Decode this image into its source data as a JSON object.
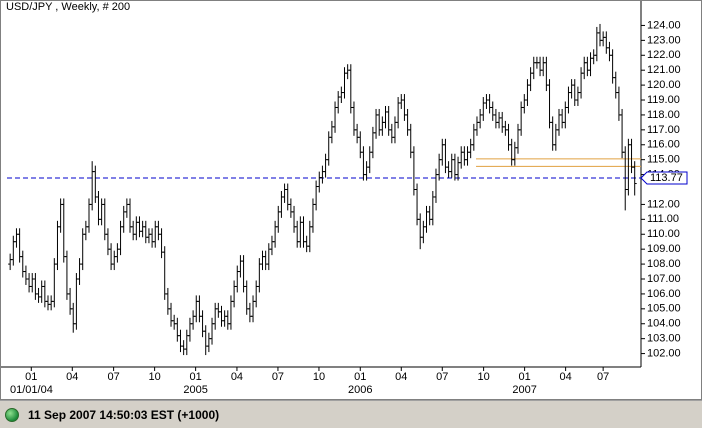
{
  "chart_data": {
    "type": "ohlc",
    "title": "USD/JPY , Weekly, # 200",
    "color": "#000000",
    "open": [
      108.0,
      108.3,
      109.5,
      110,
      108.5,
      107.5,
      107,
      106.5,
      107,
      106,
      105.8,
      106.5,
      105.5,
      105.3,
      105.5,
      108,
      110.5,
      112,
      108.5,
      106,
      105,
      104,
      107,
      108,
      110,
      110.5,
      112,
      114.2,
      112.5,
      111,
      112,
      110,
      109,
      108,
      108.5,
      109,
      110.5,
      111.5,
      112,
      110.5,
      110,
      110.8,
      110.2,
      110.5,
      109.8,
      110,
      109.5,
      110.5,
      110,
      108.8,
      106,
      105,
      104.2,
      104,
      103.2,
      102.5,
      102.3,
      103.2,
      104,
      104.5,
      105.5,
      104.5,
      103.5,
      102.5,
      103,
      104,
      105,
      104.8,
      104.2,
      104.5,
      104,
      105.5,
      106.5,
      107.5,
      108.2,
      106.5,
      105,
      104.5,
      105.5,
      106.5,
      108,
      108.5,
      108,
      109,
      109.5,
      110.5,
      111.5,
      112.5,
      113,
      112,
      111.5,
      110.5,
      109.5,
      110.8,
      109.5,
      109.2,
      110.5,
      112,
      113.2,
      113.8,
      114.2,
      115,
      116.5,
      117.2,
      118.5,
      119.2,
      119.5,
      120.8,
      121,
      118.5,
      117,
      116.5,
      115.5,
      114,
      114.5,
      115.5,
      116.8,
      118,
      117,
      117.5,
      118.2,
      117,
      116.5,
      117.5,
      118.8,
      119,
      118,
      117,
      115.5,
      113,
      111,
      109.8,
      110.5,
      111.5,
      111,
      112.5,
      114,
      115,
      116,
      114.5,
      114.2,
      115,
      114,
      114.8,
      115.5,
      115,
      115.5,
      116,
      117,
      117.5,
      118,
      118.8,
      119,
      118.5,
      118,
      117.5,
      117.8,
      117.2,
      117,
      116,
      115,
      115.8,
      117,
      118.5,
      119,
      120,
      120.8,
      121.5,
      121.5,
      121,
      121.5,
      120,
      117.5,
      116,
      117,
      118,
      117.5,
      118.5,
      119.5,
      120,
      119,
      119.5,
      120.8,
      121.5,
      121,
      121.8,
      122,
      123.5,
      123,
      123.2,
      122.5,
      122,
      120.5,
      119.5,
      118,
      115.5,
      113,
      116,
      114.5
    ],
    "high": [
      108.7,
      109.9,
      110.4,
      110.4,
      108.9,
      107.9,
      107.4,
      107.4,
      107.4,
      106.4,
      106.9,
      106.9,
      105.9,
      105.9,
      108.4,
      110.9,
      112.4,
      112.4,
      108.9,
      106.4,
      105.4,
      107.4,
      108.4,
      110.4,
      110.9,
      112.4,
      114.9,
      114.6,
      112.9,
      112.4,
      112.4,
      110.4,
      109.4,
      108.9,
      109.4,
      110.9,
      111.9,
      112.4,
      112.4,
      110.9,
      111.2,
      111.2,
      110.9,
      110.9,
      110.4,
      110.4,
      110.9,
      110.9,
      110.4,
      109.2,
      106.4,
      105.4,
      104.6,
      104.4,
      103.6,
      102.9,
      103.6,
      104.4,
      104.9,
      105.9,
      105.9,
      104.9,
      103.9,
      103.4,
      104.4,
      105.4,
      105.4,
      105.2,
      104.9,
      104.9,
      105.9,
      106.9,
      107.9,
      108.6,
      108.6,
      106.9,
      105.4,
      105.9,
      106.9,
      108.4,
      108.9,
      108.9,
      109.4,
      109.9,
      110.9,
      111.9,
      112.9,
      113.4,
      113.4,
      112.4,
      111.9,
      110.9,
      111.2,
      111.2,
      109.9,
      110.9,
      112.4,
      113.6,
      114.2,
      114.6,
      115.4,
      116.9,
      117.6,
      118.9,
      119.6,
      119.9,
      121.2,
      121.4,
      121.4,
      118.9,
      117.4,
      116.9,
      115.9,
      114.9,
      115.9,
      117.2,
      118.4,
      118.4,
      117.9,
      118.6,
      118.6,
      117.4,
      117.9,
      119.2,
      119.4,
      119.4,
      118.4,
      117.4,
      115.9,
      113.4,
      111.4,
      110.9,
      111.9,
      111.9,
      112.9,
      114.4,
      115.4,
      116.4,
      116.4,
      114.9,
      115.4,
      115.4,
      115.2,
      115.9,
      115.9,
      115.9,
      116.4,
      117.4,
      117.9,
      118.4,
      119.2,
      119.4,
      119.4,
      118.9,
      118.4,
      118.2,
      118.2,
      117.6,
      117.4,
      116.4,
      116.2,
      117.4,
      118.9,
      119.4,
      120.4,
      121.2,
      121.9,
      121.9,
      121.9,
      121.9,
      121.9,
      120.4,
      117.9,
      117.4,
      118.4,
      118.4,
      118.9,
      119.9,
      120.4,
      120.4,
      119.9,
      121.2,
      121.9,
      121.9,
      122.2,
      122.4,
      123.9,
      124.1,
      123.6,
      123.6,
      122.9,
      122.4,
      120.9,
      119.9,
      118.4,
      115.9,
      116.4,
      116.4,
      114.9
    ],
    "low": [
      107.6,
      107.9,
      109.1,
      108.1,
      107.1,
      106.6,
      106.1,
      106.1,
      105.6,
      105.4,
      105.4,
      105.1,
      104.9,
      104.9,
      105.1,
      107.6,
      110.1,
      108.1,
      105.6,
      104.6,
      103.4,
      103.6,
      106.6,
      107.6,
      109.6,
      110.1,
      111.6,
      112.1,
      110.6,
      110.6,
      109.6,
      108.6,
      107.6,
      107.6,
      108.1,
      108.6,
      110.1,
      111.1,
      110.1,
      109.6,
      109.6,
      109.8,
      109.8,
      109.4,
      109.4,
      109.1,
      109.1,
      109.6,
      108.4,
      105.6,
      104.6,
      103.8,
      103.6,
      102.8,
      102.1,
      101.9,
      101.9,
      102.8,
      103.6,
      104.1,
      104.1,
      103.1,
      101.9,
      102.1,
      102.6,
      103.6,
      104.4,
      103.8,
      103.8,
      103.6,
      103.6,
      105.1,
      106.1,
      107.1,
      106.1,
      104.6,
      104.1,
      104.1,
      105.1,
      106.1,
      107.6,
      107.6,
      107.6,
      108.6,
      109.1,
      110.1,
      111.1,
      112.1,
      111.6,
      111.1,
      110.1,
      109.1,
      109.1,
      109.1,
      108.8,
      108.8,
      110.1,
      111.6,
      112.8,
      113.4,
      113.8,
      114.6,
      116.1,
      116.8,
      118.1,
      118.8,
      119.1,
      120.4,
      118.1,
      116.6,
      116.1,
      115.1,
      113.6,
      113.6,
      114.1,
      115.1,
      116.4,
      116.6,
      116.6,
      117.1,
      116.6,
      116.1,
      116.1,
      117.1,
      118.4,
      117.6,
      116.6,
      115.1,
      112.6,
      110.6,
      109.0,
      109.4,
      110.1,
      110.6,
      110.6,
      112.1,
      113.6,
      114.6,
      114.1,
      113.8,
      113.8,
      113.6,
      113.6,
      114.4,
      114.6,
      114.6,
      115.1,
      115.6,
      116.6,
      117.1,
      117.6,
      118.4,
      118.1,
      117.6,
      117.1,
      117.1,
      116.8,
      116.6,
      115.6,
      114.6,
      114.6,
      115.4,
      116.6,
      118.1,
      118.6,
      119.6,
      120.4,
      121.1,
      120.6,
      120.6,
      119.6,
      117.1,
      115.6,
      115.6,
      116.6,
      117.1,
      117.1,
      118.1,
      119.1,
      118.6,
      118.6,
      119.1,
      120.4,
      120.6,
      120.6,
      121.4,
      121.6,
      122.6,
      122.6,
      122.1,
      121.6,
      120.1,
      119.1,
      117.6,
      115.1,
      111.6,
      112.6,
      114.1,
      112.6
    ],
    "close": [
      108.3,
      109.5,
      110,
      108.5,
      107.5,
      107,
      106.5,
      107,
      106,
      105.8,
      106.5,
      105.5,
      105.3,
      105.5,
      108,
      110.5,
      112,
      108.5,
      106,
      105,
      104,
      107,
      108,
      110,
      110.5,
      112,
      114.2,
      112.5,
      111,
      112,
      110,
      109,
      108,
      108.5,
      109,
      110.5,
      111.5,
      112,
      110.5,
      110,
      110.8,
      110.2,
      110.5,
      109.8,
      110,
      109.5,
      110.5,
      110,
      108.8,
      106,
      105,
      104.2,
      104,
      103.2,
      102.5,
      102.3,
      103.2,
      104,
      104.5,
      105.5,
      104.5,
      103.5,
      102.5,
      103,
      104,
      105,
      104.8,
      104.2,
      104.5,
      104,
      105.5,
      106.5,
      107.5,
      108.2,
      106.5,
      105,
      104.5,
      105.5,
      106.5,
      108,
      108.5,
      108,
      109,
      109.5,
      110.5,
      111.5,
      112.5,
      113,
      112,
      111.5,
      110.5,
      109.5,
      110.8,
      109.5,
      109.2,
      110.5,
      112,
      113.2,
      113.8,
      114.2,
      115,
      116.5,
      117.2,
      118.5,
      119.2,
      119.5,
      120.8,
      121,
      118.5,
      117,
      116.5,
      115.5,
      114,
      114.5,
      115.5,
      116.8,
      118,
      117,
      117.5,
      118.2,
      117,
      116.5,
      117.5,
      118.8,
      119,
      118,
      117,
      115.5,
      113,
      111,
      109.8,
      110.5,
      111.5,
      111,
      112.5,
      114,
      115,
      116,
      114.5,
      114.2,
      115,
      114,
      114.8,
      115.5,
      115,
      115.5,
      116,
      117,
      117.5,
      118,
      118.8,
      119,
      118.5,
      118,
      117.5,
      117.8,
      117.2,
      117,
      116,
      115,
      115.8,
      117,
      118.5,
      119,
      120,
      120.8,
      121.5,
      121.5,
      121,
      121.5,
      120,
      117.5,
      116,
      117,
      118,
      117.5,
      118.5,
      119.5,
      120,
      119,
      119.5,
      120.8,
      121.5,
      121,
      121.8,
      122,
      123.5,
      123,
      123.2,
      122.5,
      122,
      120.5,
      119.5,
      118,
      115.5,
      113,
      116,
      114.5,
      113.4
    ],
    "xlim": [
      -1,
      200
    ],
    "xticks": [
      {
        "value": 6.7,
        "label": "01"
      },
      {
        "value": 19.7,
        "label": "04"
      },
      {
        "value": 32.8,
        "label": "07"
      },
      {
        "value": 45.8,
        "label": "10"
      },
      {
        "value": 58.8,
        "label": "01"
      },
      {
        "value": 71.9,
        "label": "04"
      },
      {
        "value": 84.9,
        "label": "07"
      },
      {
        "value": 97.9,
        "label": "10"
      },
      {
        "value": 111.0,
        "label": "01"
      },
      {
        "value": 124.0,
        "label": "04"
      },
      {
        "value": 137.0,
        "label": "07"
      },
      {
        "value": 150.1,
        "label": "10"
      },
      {
        "value": 163.1,
        "label": "01"
      },
      {
        "value": 176.1,
        "label": "04"
      },
      {
        "value": 188.0,
        "label": "07"
      }
    ],
    "x_year_labels": [
      {
        "value": 6.7,
        "label": "01/01/04"
      },
      {
        "value": 58.8,
        "label": "2005"
      },
      {
        "value": 111.0,
        "label": "2006"
      },
      {
        "value": 163.1,
        "label": "2007"
      }
    ],
    "ylim": [
      101.1,
      124.7
    ],
    "yticks": [
      {
        "value": 102,
        "label": "102.00"
      },
      {
        "value": 103,
        "label": "103.00"
      },
      {
        "value": 104,
        "label": "104.00"
      },
      {
        "value": 105,
        "label": "105.00"
      },
      {
        "value": 106,
        "label": "106.00"
      },
      {
        "value": 107,
        "label": "107.00"
      },
      {
        "value": 108,
        "label": "108.00"
      },
      {
        "value": 109,
        "label": "109.00"
      },
      {
        "value": 110,
        "label": "110.00"
      },
      {
        "value": 111,
        "label": "111.00"
      },
      {
        "value": 112,
        "label": "112.00"
      },
      {
        "value": 114,
        "label": "114.00"
      },
      {
        "value": 115,
        "label": "115.00"
      },
      {
        "value": 116,
        "label": "116.00"
      },
      {
        "value": 117,
        "label": "117.00"
      },
      {
        "value": 118,
        "label": "118.00"
      },
      {
        "value": 119,
        "label": "119.00"
      },
      {
        "value": 120,
        "label": "120.00"
      },
      {
        "value": 121,
        "label": "121.00"
      },
      {
        "value": 122,
        "label": "122.00"
      },
      {
        "value": 123,
        "label": "123.00"
      },
      {
        "value": 124,
        "label": "124.00"
      }
    ],
    "hlines": [
      {
        "value": 113.77,
        "color": "#0000cc",
        "style": "dashed",
        "labeled": true
      },
      {
        "value": 115.05,
        "color": "#e0a040",
        "style": "solid",
        "start": 147.7,
        "labeled": false
      },
      {
        "value": 114.55,
        "color": "#e0a040",
        "style": "solid",
        "start": 147.7,
        "labeled": false
      }
    ]
  },
  "status": {
    "text": "11 Sep 2007 14:50:03  EST (+1000)"
  }
}
